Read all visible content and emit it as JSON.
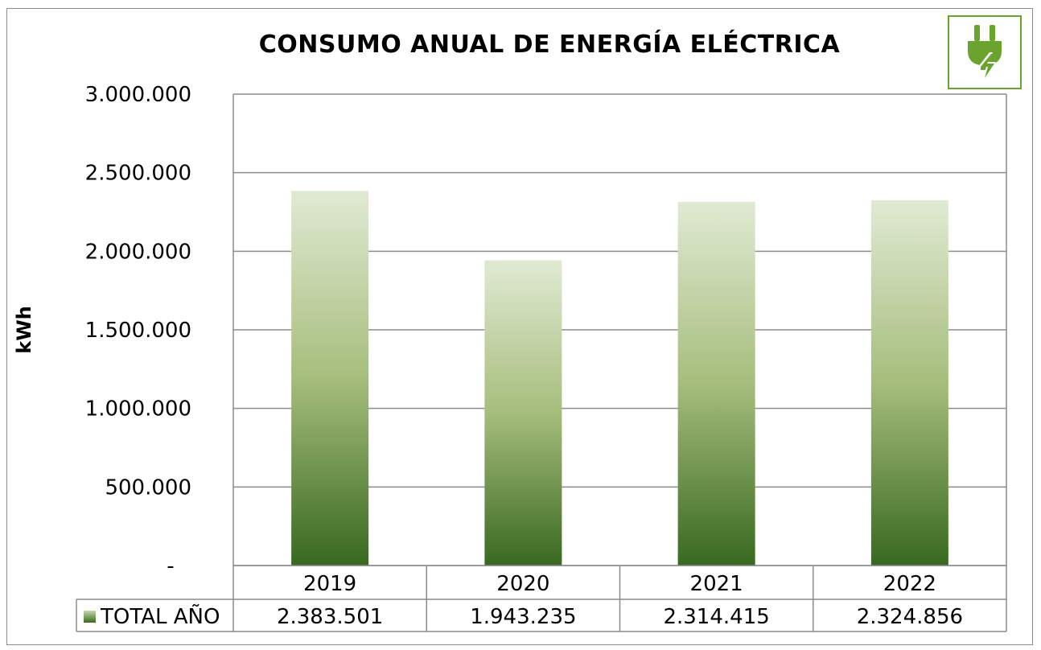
{
  "chart_data": {
    "type": "bar",
    "title": "CONSUMO ANUAL DE ENERGÍA ELÉCTRICA",
    "ylabel": "kWh",
    "xlabel": "",
    "categories": [
      "2019",
      "2020",
      "2021",
      "2022"
    ],
    "series": [
      {
        "name": "TOTAL AÑO",
        "values": [
          2383501,
          1943235,
          2314415,
          2324856
        ],
        "value_labels": [
          "2.383.501",
          "1.943.235",
          "2.314.415",
          "2.324.856"
        ]
      }
    ],
    "ylim": [
      0,
      3000000
    ],
    "yticks": [
      0,
      500000,
      1000000,
      1500000,
      2000000,
      2500000,
      3000000
    ],
    "ytick_labels": [
      "-",
      "500.000",
      "1.000.000",
      "1.500.000",
      "2.000.000",
      "2.500.000",
      "3.000.000"
    ],
    "grid": true,
    "legend": "data-table",
    "colors": {
      "bar_bottom": "#38691f",
      "bar_mid": "#a6bd7c",
      "bar_top": "#e0ead3",
      "logo_green": "#6aa32e",
      "grid": "#8c8c8c"
    }
  },
  "logo_icon": "plug-lightning-icon"
}
